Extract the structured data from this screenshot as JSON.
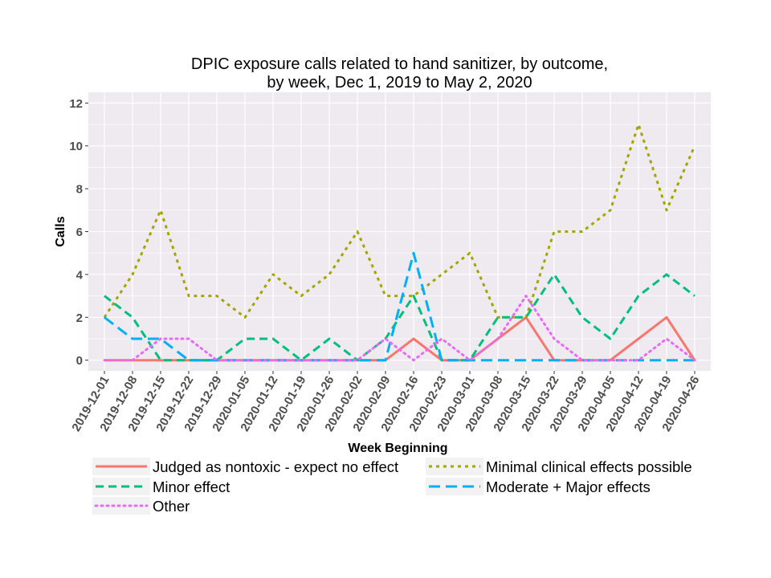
{
  "chart_data": {
    "type": "line",
    "title_lines": [
      "DPIC exposure calls related to hand sanitizer, by outcome,",
      "by week, Dec 1, 2019 to May 2, 2020"
    ],
    "xlabel": "Week Beginning",
    "ylabel": "Calls",
    "ylim": [
      -0.5,
      12.5
    ],
    "yticks": [
      0,
      2,
      4,
      6,
      8,
      10,
      12
    ],
    "grid": true,
    "legend_position": "bottom",
    "categories": [
      "2019-12-01",
      "2019-12-08",
      "2019-12-15",
      "2019-12-22",
      "2019-12-29",
      "2020-01-05",
      "2020-01-12",
      "2020-01-19",
      "2020-01-26",
      "2020-02-02",
      "2020-02-09",
      "2020-02-16",
      "2020-02-23",
      "2020-03-01",
      "2020-03-08",
      "2020-03-15",
      "2020-03-22",
      "2020-03-29",
      "2020-04-05",
      "2020-04-12",
      "2020-04-19",
      "2020-04-26"
    ],
    "series": [
      {
        "name": "Judged as nontoxic - expect no effect",
        "color": "#F8766D",
        "dash": "solid",
        "values": [
          0,
          0,
          0,
          0,
          0,
          0,
          0,
          0,
          0,
          0,
          0,
          1,
          0,
          0,
          1,
          2,
          0,
          0,
          0,
          1,
          2,
          0
        ]
      },
      {
        "name": "Minimal clinical effects possible",
        "color": "#A3A500",
        "dash": "dotted",
        "values": [
          2,
          4,
          7,
          3,
          3,
          2,
          4,
          3,
          4,
          6,
          3,
          3,
          4,
          5,
          2,
          2,
          6,
          6,
          7,
          11,
          7,
          10
        ]
      },
      {
        "name": "Minor effect",
        "color": "#00BF7D",
        "dash": "dashed",
        "values": [
          3,
          2,
          0,
          0,
          0,
          1,
          1,
          0,
          1,
          0,
          1,
          3,
          0,
          0,
          2,
          2,
          4,
          2,
          1,
          3,
          4,
          3
        ]
      },
      {
        "name": "Moderate + Major effects",
        "color": "#00B0F6",
        "dash": "longdash",
        "values": [
          2,
          1,
          1,
          0,
          0,
          0,
          0,
          0,
          0,
          0,
          0,
          5,
          0,
          0,
          0,
          0,
          0,
          0,
          0,
          0,
          0,
          0
        ]
      },
      {
        "name": "Other",
        "color": "#E76BF3",
        "dash": "dot",
        "values": [
          0,
          0,
          1,
          1,
          0,
          0,
          0,
          0,
          0,
          0,
          1,
          0,
          1,
          0,
          1,
          3,
          1,
          0,
          0,
          0,
          1,
          0
        ]
      }
    ]
  }
}
